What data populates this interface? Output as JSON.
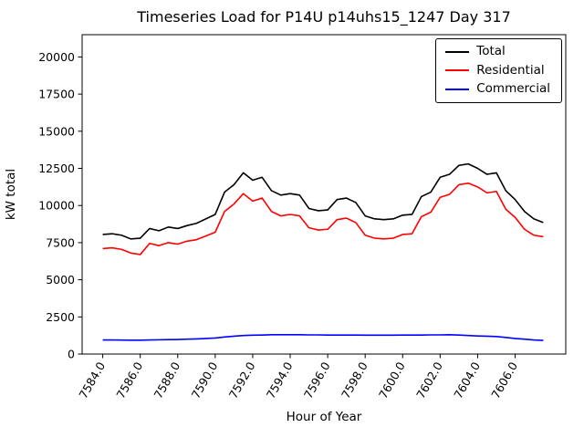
{
  "chart_data": {
    "type": "line",
    "title": "Timeseries Load for P14U p14uhs15_1247  Day 317",
    "xlabel": "Hour of Year",
    "ylabel": "kW total",
    "xlim": [
      7582.9,
      7608.7
    ],
    "ylim": [
      0,
      21500
    ],
    "grid": false,
    "legend_position": "upper right",
    "xticks": [
      7584,
      7586,
      7588,
      7590,
      7592,
      7594,
      7596,
      7598,
      7600,
      7602,
      7604,
      7606
    ],
    "xtick_labels": [
      "7584.0",
      "7586.0",
      "7588.0",
      "7590.0",
      "7592.0",
      "7594.0",
      "7596.0",
      "7598.0",
      "7600.0",
      "7602.0",
      "7604.0",
      "7606.0"
    ],
    "yticks": [
      0,
      2500,
      5000,
      7500,
      10000,
      12500,
      15000,
      17500,
      20000
    ],
    "x": [
      7584.0,
      7584.5,
      7585.0,
      7585.5,
      7586.0,
      7586.5,
      7587.0,
      7587.5,
      7588.0,
      7588.5,
      7589.0,
      7589.5,
      7590.0,
      7590.5,
      7591.0,
      7591.5,
      7592.0,
      7592.5,
      7593.0,
      7593.5,
      7594.0,
      7594.5,
      7595.0,
      7595.5,
      7596.0,
      7596.5,
      7597.0,
      7597.5,
      7598.0,
      7598.5,
      7599.0,
      7599.5,
      7600.0,
      7600.5,
      7601.0,
      7601.5,
      7602.0,
      7602.5,
      7603.0,
      7603.5,
      7604.0,
      7604.5,
      7605.0,
      7605.5,
      7606.0,
      7606.5,
      7607.0,
      7607.5
    ],
    "series": [
      {
        "name": "Total",
        "color": "#000000",
        "values": [
          8050,
          8100,
          8000,
          7750,
          7800,
          8450,
          8300,
          8550,
          8450,
          8650,
          8800,
          9100,
          9400,
          10900,
          11400,
          12200,
          11700,
          11900,
          11000,
          10700,
          10800,
          10700,
          9800,
          9650,
          9700,
          10400,
          10500,
          10200,
          9300,
          9100,
          9050,
          9100,
          9350,
          9400,
          10600,
          10900,
          11900,
          12100,
          12700,
          12800,
          12500,
          12100,
          12200,
          11000,
          10400,
          9600,
          9100,
          8850
        ]
      },
      {
        "name": "Residential",
        "color": "#ff0000",
        "values": [
          7100,
          7150,
          7050,
          6800,
          6700,
          7450,
          7300,
          7500,
          7400,
          7600,
          7700,
          7950,
          8200,
          9600,
          10100,
          10800,
          10300,
          10500,
          9600,
          9300,
          9400,
          9300,
          8500,
          8350,
          8400,
          9050,
          9150,
          8850,
          8000,
          7800,
          7750,
          7800,
          8050,
          8100,
          9250,
          9550,
          10550,
          10750,
          11400,
          11500,
          11250,
          10850,
          10950,
          9750,
          9200,
          8400,
          8000,
          7900
        ]
      },
      {
        "name": "Commercial",
        "color": "#0000ff",
        "values": [
          950,
          950,
          940,
          930,
          930,
          950,
          960,
          970,
          980,
          1000,
          1020,
          1050,
          1080,
          1150,
          1200,
          1250,
          1270,
          1280,
          1300,
          1300,
          1300,
          1300,
          1290,
          1290,
          1280,
          1280,
          1280,
          1280,
          1270,
          1270,
          1270,
          1270,
          1280,
          1280,
          1280,
          1290,
          1290,
          1300,
          1280,
          1250,
          1220,
          1200,
          1180,
          1120,
          1050,
          1000,
          950,
          920
        ]
      }
    ]
  },
  "legend": {
    "items": [
      {
        "label": "Total",
        "color": "#000000"
      },
      {
        "label": "Residential",
        "color": "#ff0000"
      },
      {
        "label": "Commercial",
        "color": "#0000ff"
      }
    ]
  }
}
